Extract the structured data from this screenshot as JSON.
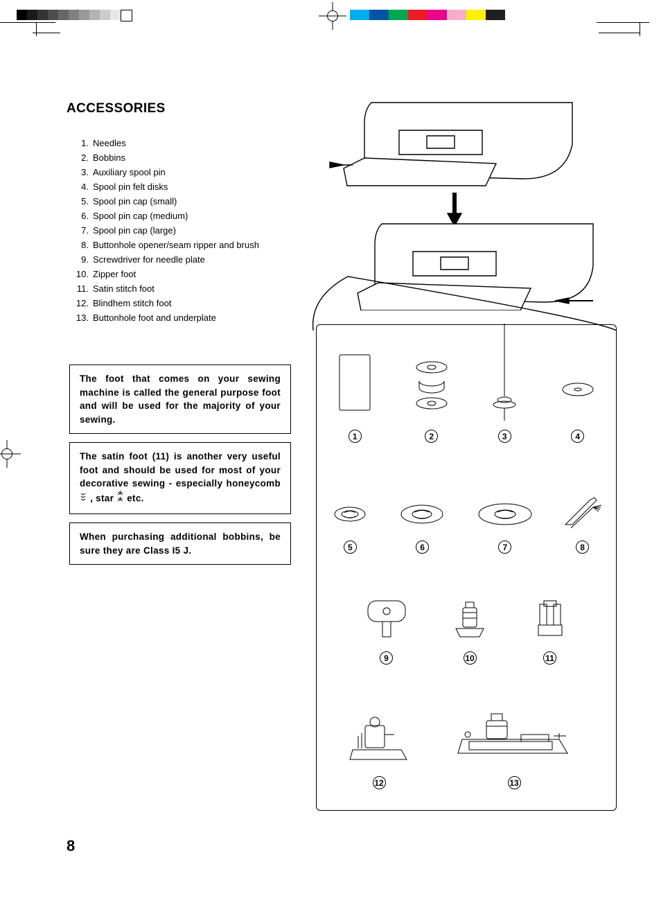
{
  "title": "ACCESSORIES",
  "list": [
    "Needles",
    "Bobbins",
    "Auxiliary spool pin",
    "Spool pin felt disks",
    "Spool pin cap (small)",
    "Spool pin cap (medium)",
    "Spool pin cap (large)",
    "Buttonhole opener/seam ripper and brush",
    "Screwdriver for needle plate",
    "Zipper foot",
    "Satin stitch foot",
    "Blindhem stitch foot",
    "Buttonhole foot and underplate"
  ],
  "note1": "The foot that comes on your sewing machine is called the general purpose foot and will be used for the majority of your sewing.",
  "note2a": "The satin foot (11) is another very useful foot and should be used for most of your decorative sewing - especially honeycomb",
  "note2b": " , star ",
  "note2c": " etc.",
  "note3": "When purchasing additional bobbins, be sure they are Class I5 J.",
  "page_number": "8",
  "gray_swatches": [
    "#000000",
    "#1a1a1a",
    "#333333",
    "#4d4d4d",
    "#666666",
    "#808080",
    "#999999",
    "#b3b3b3",
    "#cccccc",
    "#e6e6e6",
    "#fdfdfd"
  ],
  "color_swatches": [
    "#00aeef",
    "#0054a6",
    "#00a651",
    "#ed1c24",
    "#ec008c",
    "#f7adc9",
    "#fff200",
    "#231f20"
  ],
  "acc_labels": [
    "1",
    "2",
    "3",
    "4",
    "5",
    "6",
    "7",
    "8",
    "9",
    "10",
    "11",
    "12",
    "13"
  ],
  "stroke_color": "#000000",
  "bg_color": "#ffffff"
}
